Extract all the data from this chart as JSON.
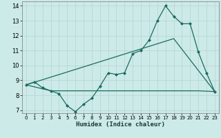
{
  "xlabel": "Humidex (Indice chaleur)",
  "xlim": [
    -0.5,
    23.5
  ],
  "ylim": [
    6.8,
    14.3
  ],
  "yticks": [
    7,
    8,
    9,
    10,
    11,
    12,
    13,
    14
  ],
  "xticks": [
    0,
    1,
    2,
    3,
    4,
    5,
    6,
    7,
    8,
    9,
    10,
    11,
    12,
    13,
    14,
    15,
    16,
    17,
    18,
    19,
    20,
    21,
    22,
    23
  ],
  "bg_color": "#cceae7",
  "line_color": "#1a6b5e",
  "grid_color": "#b8d8d4",
  "line1_x": [
    0,
    1,
    2,
    3,
    4,
    5,
    6,
    7,
    8,
    9,
    10,
    11,
    12,
    13,
    14,
    15,
    16,
    17,
    18,
    19,
    20,
    21,
    22,
    23
  ],
  "line1_y": [
    8.7,
    8.9,
    8.5,
    8.3,
    8.1,
    7.3,
    6.9,
    7.4,
    7.8,
    8.6,
    9.5,
    9.4,
    9.5,
    10.8,
    11.0,
    11.7,
    13.0,
    14.0,
    13.3,
    12.8,
    12.8,
    10.9,
    9.5,
    8.25
  ],
  "line2_x": [
    0,
    3,
    21,
    23
  ],
  "line2_y": [
    8.7,
    8.3,
    8.3,
    8.25
  ],
  "line3_x": [
    0,
    18,
    23
  ],
  "line3_y": [
    8.7,
    11.8,
    8.25
  ]
}
